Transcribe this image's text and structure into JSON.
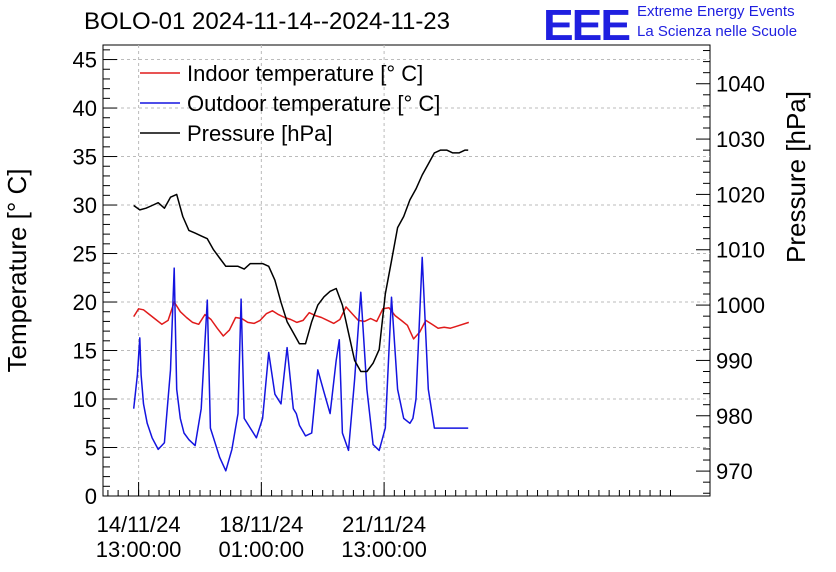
{
  "chart_data": {
    "type": "line",
    "title": "BOLO-01 2024-11-14--2024-11-23",
    "logo": {
      "text": "EEE",
      "line1": "Extreme Energy Events",
      "line2": "La Scienza nelle Scuole"
    },
    "ylabel": "Temperature [° C]",
    "y2label": "Pressure [hPa]",
    "ylim": [
      0,
      46.5
    ],
    "y2lim": [
      965.5,
      1047
    ],
    "yticks": [
      0,
      5,
      10,
      15,
      20,
      25,
      30,
      35,
      40,
      45
    ],
    "y2ticks": [
      970,
      980,
      990,
      1000,
      1010,
      1020,
      1030,
      1040
    ],
    "xlim": [
      0,
      9.89
    ],
    "xticks": [
      {
        "x": 0.58,
        "label1": "14/11/24",
        "label2": "13:00:00"
      },
      {
        "x": 2.58,
        "label1": "18/11/24",
        "label2": "01:00:00"
      },
      {
        "x": 4.58,
        "label1": "21/11/24",
        "label2": "13:00:00"
      }
    ],
    "colors": {
      "indoor": "#e01b1b",
      "outdoor": "#1414e0",
      "pressure": "#000000",
      "grid": "#bbbbbb"
    },
    "legend": {
      "placement": "top-left"
    },
    "series": [
      {
        "name": "Indoor temperature [° C]",
        "axis": "left",
        "color": "#e01b1b",
        "x": [
          0.5,
          0.58,
          0.66,
          0.76,
          0.86,
          0.96,
          1.06,
          1.16,
          1.26,
          1.36,
          1.46,
          1.56,
          1.66,
          1.76,
          1.86,
          1.96,
          2.06,
          2.16,
          2.26,
          2.36,
          2.46,
          2.56,
          2.66,
          2.76,
          2.86,
          2.96,
          3.06,
          3.16,
          3.26,
          3.36,
          3.46,
          3.56,
          3.66,
          3.76,
          3.86,
          3.96,
          4.06,
          4.16,
          4.26,
          4.36,
          4.46,
          4.56,
          4.66,
          4.76,
          4.86,
          4.96,
          5.06,
          5.16,
          5.26,
          5.36,
          5.46,
          5.56,
          5.66,
          5.76,
          5.96
        ],
        "y": [
          18.5,
          19.3,
          19.2,
          18.7,
          18.2,
          17.7,
          18.1,
          20.0,
          19.0,
          18.4,
          17.9,
          17.7,
          18.7,
          18.2,
          17.3,
          16.5,
          17.1,
          18.4,
          18.3,
          17.9,
          17.8,
          18.1,
          18.8,
          19.1,
          18.7,
          18.4,
          18.2,
          17.9,
          18.1,
          18.9,
          18.6,
          18.4,
          18.1,
          17.8,
          18.2,
          19.5,
          18.8,
          18.1,
          18.0,
          18.3,
          18.0,
          19.3,
          19.4,
          18.6,
          18.1,
          17.6,
          16.2,
          16.9,
          18.1,
          17.7,
          17.3,
          17.4,
          17.3,
          17.5,
          17.9
        ]
      },
      {
        "name": "Outdoor temperature [° C]",
        "axis": "left",
        "color": "#1414e0",
        "x": [
          0.5,
          0.56,
          0.6,
          0.62,
          0.66,
          0.72,
          0.8,
          0.9,
          1.0,
          1.1,
          1.16,
          1.2,
          1.26,
          1.32,
          1.4,
          1.5,
          1.6,
          1.7,
          1.75,
          1.8,
          1.9,
          2.0,
          2.1,
          2.2,
          2.25,
          2.3,
          2.4,
          2.5,
          2.6,
          2.7,
          2.8,
          2.9,
          2.95,
          3.0,
          3.1,
          3.15,
          3.2,
          3.3,
          3.4,
          3.5,
          3.6,
          3.7,
          3.8,
          3.85,
          3.9,
          4.0,
          4.1,
          4.2,
          4.3,
          4.4,
          4.5,
          4.6,
          4.7,
          4.8,
          4.9,
          5.0,
          5.05,
          5.1,
          5.2,
          5.3,
          5.4,
          5.5,
          5.6,
          5.7,
          5.8,
          5.9,
          5.95
        ],
        "y": [
          9.0,
          12.5,
          16.3,
          12.5,
          9.5,
          7.5,
          6.0,
          4.8,
          5.5,
          13.0,
          23.5,
          11.0,
          8.0,
          6.5,
          5.8,
          5.2,
          9.0,
          20.2,
          7.0,
          6.0,
          4.0,
          2.6,
          4.8,
          8.5,
          20.3,
          8.0,
          7.0,
          6.0,
          8.0,
          14.8,
          10.5,
          9.5,
          12.5,
          15.3,
          9.0,
          8.5,
          7.3,
          6.2,
          6.5,
          13.0,
          10.7,
          8.5,
          14.0,
          16.1,
          6.5,
          4.7,
          12.0,
          21.0,
          11.0,
          5.3,
          4.7,
          7.0,
          20.5,
          11.0,
          8.0,
          7.5,
          8.0,
          10.0,
          24.6,
          11.0,
          7.0,
          7.0,
          7.0,
          7.0,
          7.0,
          7.0,
          7.0
        ]
      },
      {
        "name": "Pressure [hPa]",
        "axis": "right",
        "color": "#000000",
        "x": [
          0.5,
          0.6,
          0.7,
          0.8,
          0.9,
          1.0,
          1.1,
          1.2,
          1.3,
          1.4,
          1.5,
          1.6,
          1.7,
          1.8,
          1.9,
          2.0,
          2.1,
          2.2,
          2.3,
          2.4,
          2.5,
          2.6,
          2.7,
          2.8,
          2.9,
          3.0,
          3.1,
          3.2,
          3.3,
          3.4,
          3.5,
          3.6,
          3.7,
          3.8,
          3.9,
          4.0,
          4.1,
          4.2,
          4.3,
          4.4,
          4.5,
          4.6,
          4.7,
          4.8,
          4.9,
          5.0,
          5.1,
          5.2,
          5.3,
          5.4,
          5.5,
          5.6,
          5.7,
          5.8,
          5.9,
          5.95
        ],
        "y": [
          1018.0,
          1017.2,
          1017.5,
          1018.0,
          1018.5,
          1017.5,
          1019.5,
          1020.0,
          1016.0,
          1013.5,
          1013.0,
          1012.5,
          1012.0,
          1010.0,
          1008.5,
          1007.0,
          1007.0,
          1007.0,
          1006.5,
          1007.5,
          1007.5,
          1007.5,
          1007.0,
          1004.5,
          1000.5,
          997.0,
          995.0,
          993.0,
          993.0,
          997.0,
          1000.0,
          1001.5,
          1002.5,
          1003.0,
          1000.0,
          995.0,
          990.0,
          988.0,
          988.0,
          989.5,
          992.0,
          1002.0,
          1008.0,
          1014.0,
          1016.0,
          1019.0,
          1021.0,
          1023.5,
          1025.5,
          1027.5,
          1028.0,
          1028.0,
          1027.5,
          1027.5,
          1028.0,
          1028.0
        ]
      }
    ]
  }
}
